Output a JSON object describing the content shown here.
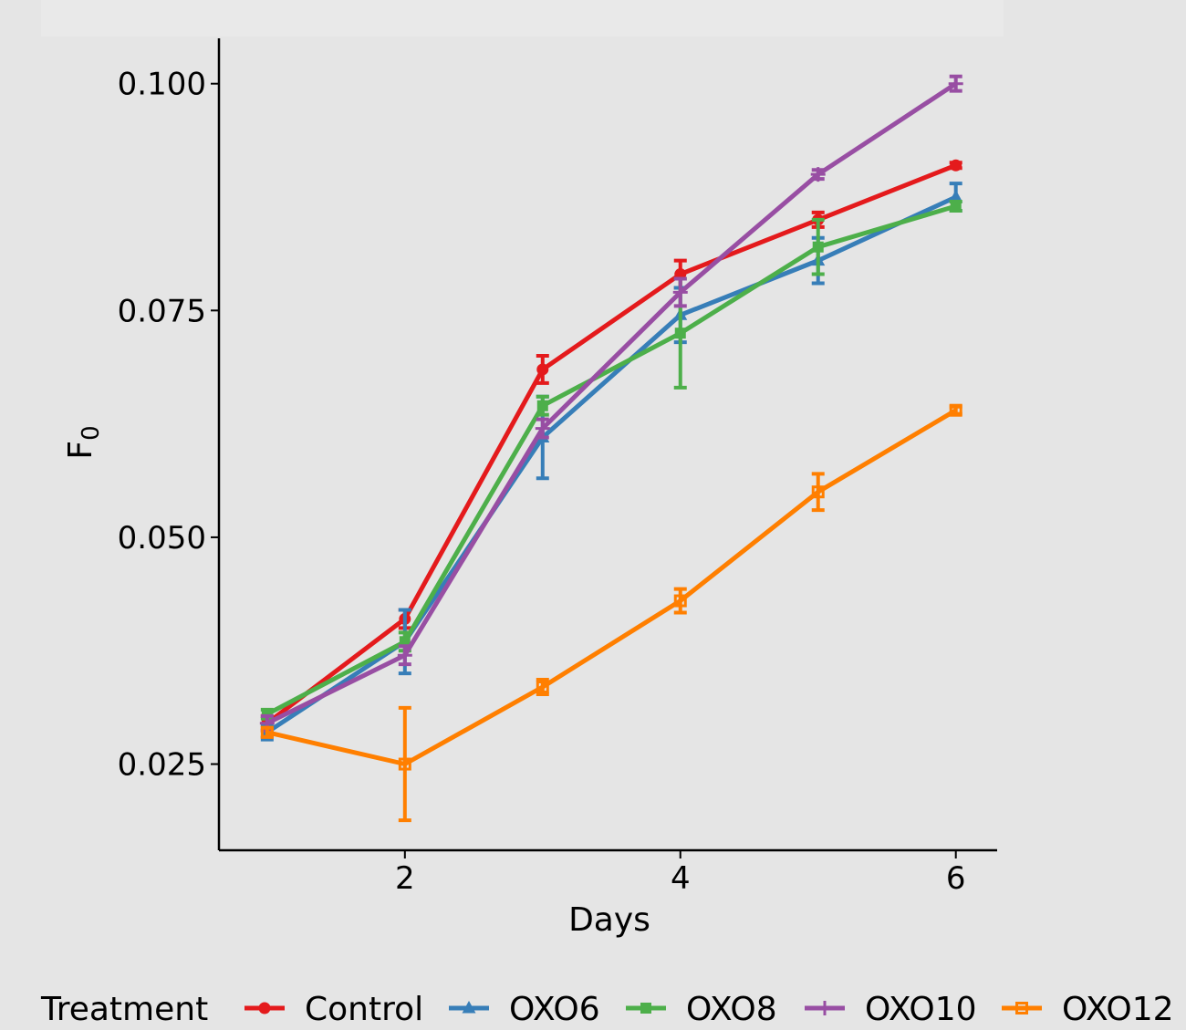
{
  "chart_data": {
    "type": "line",
    "title": "",
    "xlabel": "Days",
    "ylabel": "F",
    "ylabel_subscript": "0",
    "x": [
      1,
      2,
      3,
      4,
      5,
      6
    ],
    "xlim": [
      0.65,
      6.3
    ],
    "ylim": [
      0.0155,
      0.105
    ],
    "x_ticks": [
      2,
      4,
      6
    ],
    "x_tick_labels": [
      "2",
      "4",
      "6"
    ],
    "y_ticks": [
      0.025,
      0.05,
      0.075,
      0.1
    ],
    "y_tick_labels": [
      "0.025",
      "0.050",
      "0.075",
      "0.100"
    ],
    "grid": false,
    "legend_position": "bottom",
    "legend_title": "Treatment",
    "series": [
      {
        "name": "Control",
        "color": "#e41a1c",
        "marker": "circle",
        "values": [
          0.0295,
          0.041,
          0.0685,
          0.079,
          0.085,
          0.091
        ],
        "error": [
          0.0008,
          0.001,
          0.0015,
          0.0015,
          0.0008,
          0.0003
        ]
      },
      {
        "name": "OXO6",
        "color": "#377eb8",
        "marker": "triangle",
        "values": [
          0.0285,
          0.0385,
          0.061,
          0.0745,
          0.0805,
          0.0875
        ],
        "error": [
          0.0008,
          0.0035,
          0.0045,
          0.003,
          0.0025,
          0.0015
        ]
      },
      {
        "name": "OXO8",
        "color": "#4daf4a",
        "marker": "square",
        "values": [
          0.0305,
          0.0385,
          0.0645,
          0.0725,
          0.082,
          0.0865
        ],
        "error": [
          0.0005,
          0.001,
          0.001,
          0.006,
          0.003,
          0.0005
        ]
      },
      {
        "name": "OXO10",
        "color": "#984ea3",
        "marker": "plus",
        "values": [
          0.0295,
          0.037,
          0.062,
          0.077,
          0.09,
          0.1
        ],
        "error": [
          0.0008,
          0.001,
          0.001,
          0.0015,
          0.0005,
          0.0008
        ]
      },
      {
        "name": "OXO12",
        "color": "#ff7f00",
        "marker": "square-open",
        "values": [
          0.0285,
          0.025,
          0.0335,
          0.043,
          0.055,
          0.064
        ],
        "error": [
          0.0005,
          0.0062,
          0.0008,
          0.0013,
          0.002,
          0.0004
        ]
      }
    ]
  }
}
